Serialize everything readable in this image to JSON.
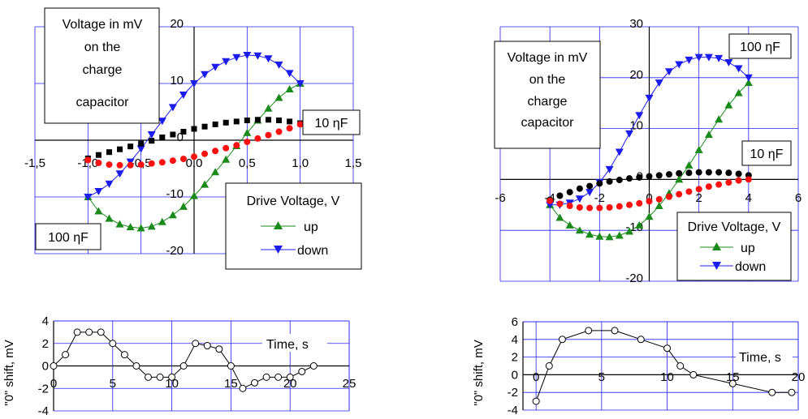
{
  "colors": {
    "up": "#1a8a1a",
    "down": "#1c1cf0",
    "black": "#000000",
    "red": "#ff1010",
    "grid": "#2020ff"
  },
  "chart_data": [
    {
      "type": "line",
      "xlim": [
        -1.5,
        1.5
      ],
      "ylim": [
        -20,
        20
      ],
      "xticks": [
        "-1,5",
        "-1,0",
        "-0,5",
        "0,0",
        "0,5",
        "1,0",
        "1,5"
      ],
      "yticks": [
        "-20",
        "-10",
        "0",
        "10",
        "20"
      ],
      "grid": true,
      "title_box": [
        "Voltage in mV",
        "on the",
        "charge",
        "capacitor"
      ],
      "legend": {
        "title": "Drive Voltage, V",
        "entries": [
          "up",
          "down"
        ]
      },
      "labels": {
        "small_cap": "10 ηF",
        "large_cap": "100 ηF"
      },
      "series": [
        {
          "name": "up",
          "color": "#1a8a1a",
          "marker": "triangle-up",
          "line": true,
          "x": [
            -1.0,
            -0.9,
            -0.8,
            -0.7,
            -0.6,
            -0.5,
            -0.4,
            -0.3,
            -0.2,
            -0.1,
            0.0,
            0.1,
            0.2,
            0.3,
            0.4,
            0.5,
            0.6,
            0.7,
            0.8,
            0.9,
            1.0
          ],
          "y": [
            -10,
            -12.5,
            -13.8,
            -14.8,
            -15.3,
            -15.5,
            -15.2,
            -14.4,
            -13.2,
            -11.7,
            -9.8,
            -7.8,
            -5.6,
            -3.4,
            -1.0,
            1.3,
            3.5,
            5.6,
            7.5,
            9.0,
            10.0
          ]
        },
        {
          "name": "down",
          "color": "#1c1cf0",
          "marker": "triangle-down",
          "line": true,
          "x": [
            1.0,
            0.9,
            0.8,
            0.7,
            0.6,
            0.5,
            0.4,
            0.3,
            0.2,
            0.1,
            0.0,
            -0.1,
            -0.2,
            -0.3,
            -0.4,
            -0.5,
            -0.6,
            -0.7,
            -0.8,
            -0.9,
            -1.0
          ],
          "y": [
            10,
            11.8,
            13.3,
            14.4,
            14.9,
            15.0,
            14.6,
            13.9,
            12.9,
            11.6,
            10.0,
            8.0,
            5.8,
            3.4,
            1.0,
            -1.5,
            -3.8,
            -5.9,
            -7.7,
            -9.0,
            -10.0
          ]
        },
        {
          "name": "",
          "color": "#000000",
          "marker": "square",
          "line": false,
          "x": [
            -1.0,
            -0.9,
            -0.8,
            -0.7,
            -0.6,
            -0.5,
            -0.4,
            -0.3,
            -0.2,
            -0.1,
            0.0,
            0.1,
            0.2,
            0.3,
            0.4,
            0.5,
            0.6,
            0.7,
            0.8,
            0.9,
            1.0
          ],
          "y": [
            -3.2,
            -2.6,
            -2.1,
            -1.6,
            -1.1,
            -0.6,
            -0.1,
            0.5,
            1.0,
            1.5,
            2.0,
            2.4,
            2.8,
            3.1,
            3.3,
            3.5,
            3.6,
            3.6,
            3.5,
            3.3,
            3.0
          ]
        },
        {
          "name": "",
          "color": "#ff1010",
          "marker": "circle",
          "line": false,
          "x": [
            -1.0,
            -0.9,
            -0.8,
            -0.7,
            -0.6,
            -0.5,
            -0.4,
            -0.3,
            -0.2,
            -0.1,
            0.0,
            0.1,
            0.2,
            0.3,
            0.4,
            0.5,
            0.6,
            0.7,
            0.8,
            0.9,
            1.0
          ],
          "y": [
            -3.5,
            -4.0,
            -4.3,
            -4.4,
            -4.4,
            -4.3,
            -4.1,
            -3.9,
            -3.6,
            -3.3,
            -2.9,
            -2.4,
            -1.9,
            -1.4,
            -0.9,
            -0.3,
            0.3,
            0.9,
            1.5,
            2.1,
            2.8
          ]
        }
      ]
    },
    {
      "type": "line",
      "xlim": [
        -6,
        6
      ],
      "ylim": [
        -20,
        30
      ],
      "xticks": [
        "-6",
        "-4",
        "-2",
        "0",
        "2",
        "4",
        "6"
      ],
      "yticks": [
        "-20",
        "-10",
        "0",
        "10",
        "20",
        "30"
      ],
      "grid": true,
      "title_box": [
        "Voltage in mV",
        "on the",
        "charge",
        "capacitor"
      ],
      "legend": {
        "title": "Drive Voltage, V",
        "entries": [
          "up",
          "down"
        ]
      },
      "labels": {
        "small_cap": "10 ηF",
        "large_cap": "100 ηF"
      },
      "series": [
        {
          "name": "up",
          "color": "#1a8a1a",
          "marker": "triangle-up",
          "line": true,
          "x": [
            -4.0,
            -3.6,
            -3.2,
            -2.8,
            -2.4,
            -2.0,
            -1.6,
            -1.2,
            -0.8,
            -0.4,
            0.0,
            0.4,
            0.8,
            1.2,
            1.6,
            2.0,
            2.4,
            2.8,
            3.2,
            3.6,
            4.0
          ],
          "y": [
            -5,
            -7.5,
            -9.0,
            -10.0,
            -10.8,
            -11.2,
            -11.3,
            -11.0,
            -10.2,
            -9.0,
            -7.3,
            -5.2,
            -2.7,
            0,
            2.8,
            5.8,
            8.8,
            11.8,
            14.6,
            17.0,
            19.0
          ]
        },
        {
          "name": "down",
          "color": "#1c1cf0",
          "marker": "triangle-down",
          "line": true,
          "x": [
            4.0,
            3.6,
            3.2,
            2.8,
            2.4,
            2.0,
            1.6,
            1.2,
            0.8,
            0.4,
            0.0,
            -0.4,
            -0.8,
            -1.2,
            -1.6,
            -2.0,
            -2.4,
            -2.8,
            -3.2,
            -3.6,
            -4.0
          ],
          "y": [
            20,
            21.8,
            23.0,
            23.8,
            24.0,
            24.0,
            23.5,
            22.6,
            21.2,
            19.0,
            16.0,
            12.6,
            9.0,
            5.4,
            2.0,
            -0.6,
            -2.5,
            -3.8,
            -4.6,
            -5.0,
            -5.0
          ]
        },
        {
          "name": "",
          "color": "#000000",
          "marker": "circle",
          "line": false,
          "x": [
            -4.0,
            -3.6,
            -3.2,
            -2.8,
            -2.4,
            -2.0,
            -1.6,
            -1.2,
            -0.8,
            -0.4,
            0.0,
            0.4,
            0.8,
            1.2,
            1.6,
            2.0,
            2.4,
            2.8,
            3.2,
            3.6,
            4.0
          ],
          "y": [
            -4.0,
            -3.2,
            -2.5,
            -1.8,
            -1.3,
            -0.8,
            -0.4,
            -0.1,
            0.2,
            0.4,
            0.6,
            0.8,
            1.0,
            1.2,
            1.3,
            1.4,
            1.4,
            1.4,
            1.3,
            1.1,
            0.8
          ]
        },
        {
          "name": "",
          "color": "#ff1010",
          "marker": "circle",
          "line": false,
          "x": [
            -4.0,
            -3.6,
            -3.2,
            -2.8,
            -2.4,
            -2.0,
            -1.6,
            -1.2,
            -0.8,
            -0.4,
            0.0,
            0.4,
            0.8,
            1.2,
            1.6,
            2.0,
            2.4,
            2.8,
            3.2,
            3.6,
            4.0
          ],
          "y": [
            -4.2,
            -4.8,
            -5.2,
            -5.5,
            -5.6,
            -5.6,
            -5.5,
            -5.3,
            -5.0,
            -4.7,
            -4.3,
            -3.9,
            -3.4,
            -2.9,
            -2.4,
            -1.9,
            -1.4,
            -1.0,
            -0.6,
            -0.2,
            0.0
          ]
        }
      ]
    },
    {
      "type": "line",
      "xlim": [
        0,
        25
      ],
      "ylim": [
        -4,
        4
      ],
      "xticks": [
        "0",
        "5",
        "10",
        "15",
        "20",
        "25"
      ],
      "yticks": [
        "-4",
        "-2",
        "0",
        "2",
        "4"
      ],
      "ylabel": "\"0\" shift, mV",
      "xlabel": "Time, s",
      "grid": true,
      "series": [
        {
          "name": "",
          "color": "#000000",
          "marker": "open-circle",
          "line": true,
          "x": [
            0,
            1,
            2,
            3,
            4,
            5,
            6,
            7,
            8,
            9,
            10,
            11,
            12,
            13,
            14,
            15,
            16,
            17,
            18,
            19,
            20,
            21,
            22
          ],
          "y": [
            0,
            1,
            3,
            3,
            3,
            2,
            1,
            0,
            -1,
            -1,
            -1,
            0,
            2,
            1.8,
            1.5,
            0,
            -2,
            -1.5,
            -1,
            -1,
            -1,
            -0.5,
            0
          ]
        }
      ]
    },
    {
      "type": "line",
      "xlim": [
        -1,
        20
      ],
      "ylim": [
        -4,
        6
      ],
      "xticks": [
        "0",
        "5",
        "10",
        "15",
        "20"
      ],
      "yticks": [
        "-4",
        "-2",
        "0",
        "2",
        "4",
        "6"
      ],
      "ylabel": "\"0\" shift, mV",
      "xlabel": "Time, s",
      "grid": true,
      "series": [
        {
          "name": "",
          "color": "#000000",
          "marker": "open-circle",
          "line": true,
          "x": [
            0,
            1,
            2,
            4,
            6,
            8,
            10,
            11,
            12,
            15,
            18,
            19.5
          ],
          "y": [
            -3,
            1,
            4,
            5,
            5,
            4,
            3,
            1,
            0,
            -1,
            -2,
            -2
          ]
        }
      ]
    }
  ]
}
